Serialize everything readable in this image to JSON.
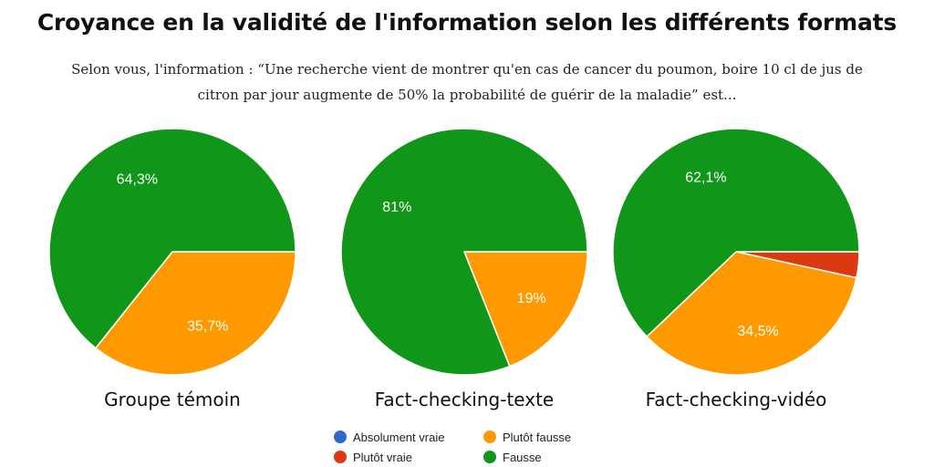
{
  "title": "Croyance en la validité de l'information selon les différents formats",
  "subtitle_line1": "Selon vous, l'information : “Une recherche vient de montrer qu'en cas de cancer du poumon, boire 10 cl de jus de",
  "subtitle_line2": "citron par jour augmente de 50% la probabilité de guérir de la maladie” est...",
  "colors": {
    "absolument_vraie": "#3366cc",
    "plutot_vraie": "#dc3912",
    "plutot_fausse": "#ff9900",
    "fausse": "#109618"
  },
  "legend": [
    {
      "label": "Absolument vraie",
      "color": "#3366cc"
    },
    {
      "label": "Plutôt vraie",
      "color": "#dc3912"
    },
    {
      "label": "Plutôt fausse",
      "color": "#ff9900"
    },
    {
      "label": "Fausse",
      "color": "#109618"
    }
  ],
  "chart_data": [
    {
      "type": "pie",
      "title": "Groupe témoin",
      "slices": [
        {
          "category": "Absolument vraie",
          "value": 0,
          "label": ""
        },
        {
          "category": "Plutôt vraie",
          "value": 0,
          "label": ""
        },
        {
          "category": "Plutôt fausse",
          "value": 35.7,
          "label": "35,7%"
        },
        {
          "category": "Fausse",
          "value": 64.3,
          "label": "64,3%"
        }
      ]
    },
    {
      "type": "pie",
      "title": "Fact-checking-texte",
      "slices": [
        {
          "category": "Absolument vraie",
          "value": 0,
          "label": ""
        },
        {
          "category": "Plutôt vraie",
          "value": 0,
          "label": ""
        },
        {
          "category": "Plutôt fausse",
          "value": 19,
          "label": "19%"
        },
        {
          "category": "Fausse",
          "value": 81,
          "label": "81%"
        }
      ]
    },
    {
      "type": "pie",
      "title": "Fact-checking-vidéo",
      "slices": [
        {
          "category": "Absolument vraie",
          "value": 0,
          "label": ""
        },
        {
          "category": "Plutôt vraie",
          "value": 3.4,
          "label": ""
        },
        {
          "category": "Plutôt fausse",
          "value": 34.5,
          "label": "34,5%"
        },
        {
          "category": "Fausse",
          "value": 62.1,
          "label": "62,1%"
        }
      ]
    }
  ]
}
